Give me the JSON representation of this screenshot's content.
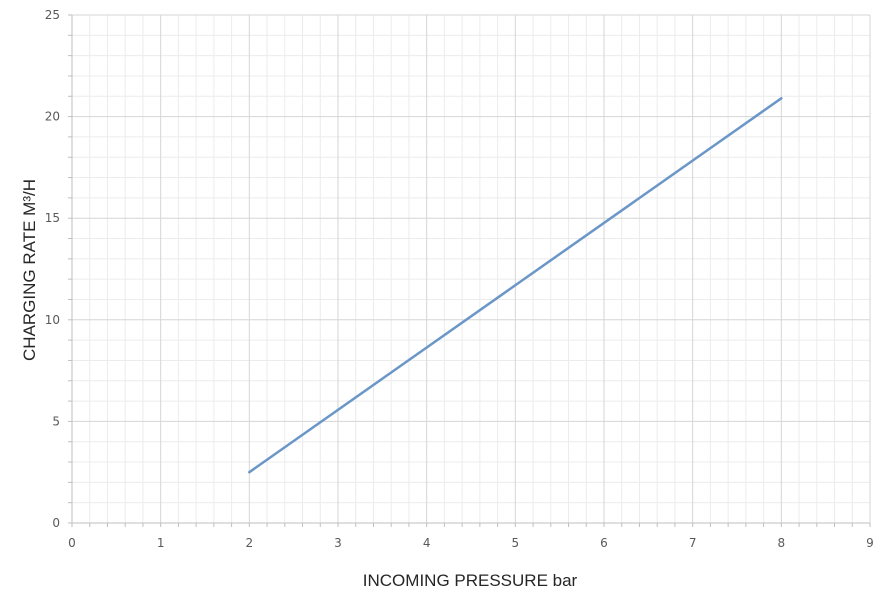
{
  "chart_data": {
    "type": "line",
    "xlabel": "INCOMING PRESSURE bar",
    "ylabel": "CHARGING RATE M³/H",
    "xlim": [
      0,
      9
    ],
    "ylim": [
      0,
      25
    ],
    "x_ticks": [
      "0",
      "1",
      "2",
      "3",
      "4",
      "5",
      "6",
      "7",
      "8",
      "9"
    ],
    "y_ticks": [
      "0",
      "5",
      "10",
      "15",
      "20",
      "25"
    ],
    "grid": true,
    "minor_grid": true,
    "legend": "none",
    "series": [
      {
        "color": "#6a96c8",
        "x": [
          2,
          8
        ],
        "y": [
          2.5,
          20.9
        ]
      }
    ]
  }
}
